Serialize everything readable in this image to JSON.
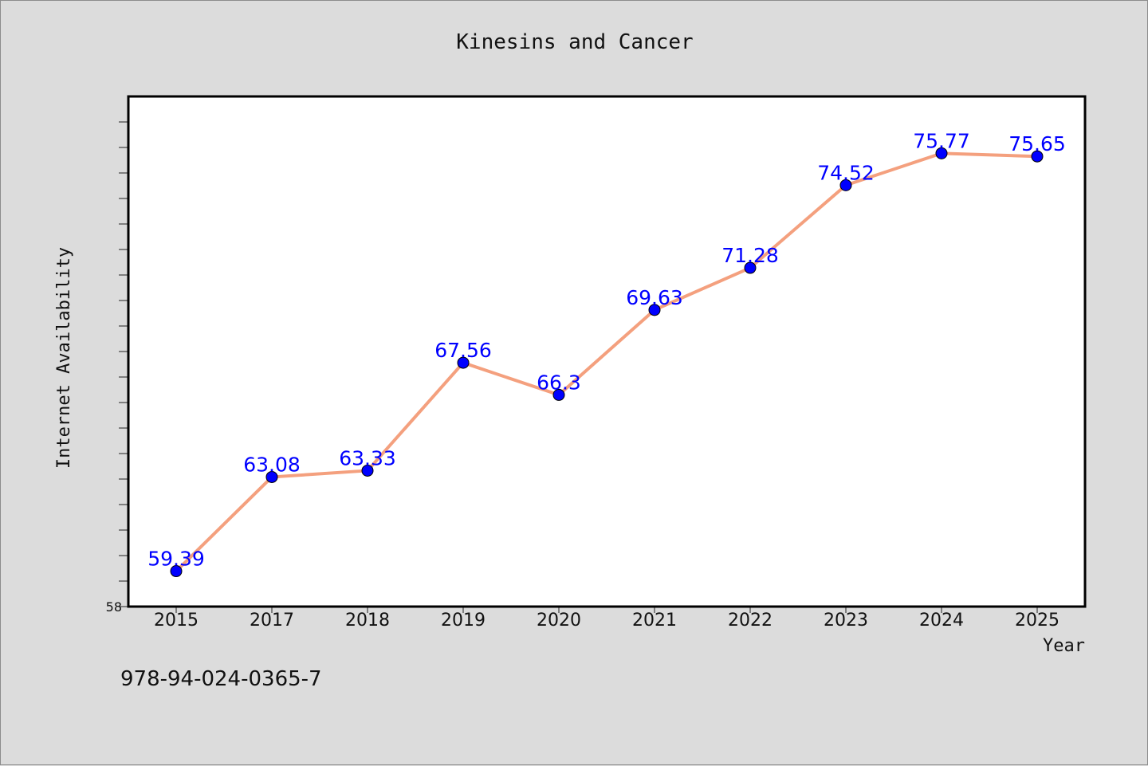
{
  "chart_data": {
    "type": "line",
    "title": "Kinesins and Cancer",
    "xlabel": "Year",
    "ylabel": "Internet Availability",
    "categories": [
      "2015",
      "2017",
      "2018",
      "2019",
      "2020",
      "2021",
      "2022",
      "2023",
      "2024",
      "2025"
    ],
    "series": [
      {
        "values": [
          59.39,
          63.08,
          63.33,
          67.56,
          66.3,
          69.63,
          71.28,
          74.52,
          75.77,
          75.65
        ],
        "point_labels": [
          "59.39",
          "63.08",
          "63.33",
          "67.56",
          "66.3",
          "69.63",
          "71.28",
          "74.52",
          "75.77",
          "75.65"
        ]
      }
    ],
    "ylim": [
      58,
      78
    ],
    "y_tick_labels": [
      "58"
    ],
    "y_minor_step": 1,
    "grid": false,
    "colors": {
      "line": "#f4a07e",
      "marker": "#0000ff",
      "label": "#0000ff",
      "plot_bg": "#ffffff",
      "page_bg": "#dcdcdc"
    }
  },
  "footer": {
    "code": "978-94-024-0365-7"
  }
}
